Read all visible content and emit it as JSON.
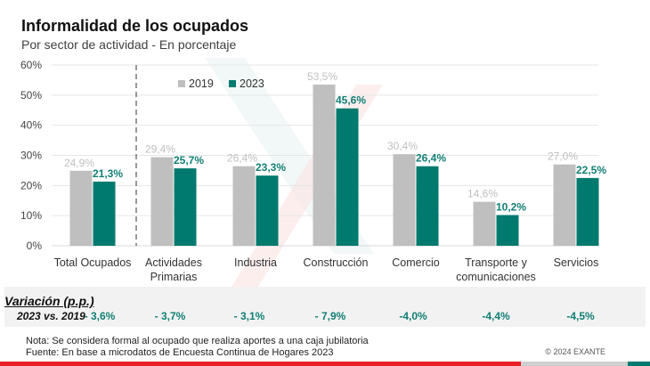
{
  "header": {
    "title": "Informalidad de los ocupados",
    "subtitle": "Por sector de actividad - En porcentaje"
  },
  "chart_data": {
    "type": "bar",
    "title": "Informalidad de los ocupados",
    "subtitle": "Por sector de actividad - En porcentaje",
    "xlabel": "",
    "ylabel": "",
    "ylim": [
      0,
      60
    ],
    "yticks": [
      0,
      10,
      20,
      30,
      40,
      50,
      60
    ],
    "ytick_labels": [
      "0%",
      "10%",
      "20%",
      "30%",
      "40%",
      "50%",
      "60%"
    ],
    "grid": true,
    "legend_position": "top-left",
    "categories": [
      "Total Ocupados",
      "Actividades Primarias",
      "Industria",
      "Construcción",
      "Comercio",
      "Transporte y comunicaciones",
      "Servicios"
    ],
    "category_lines": [
      [
        "Total Ocupados"
      ],
      [
        "Actividades",
        "Primarias"
      ],
      [
        "Industria"
      ],
      [
        "Construcción"
      ],
      [
        "Comercio"
      ],
      [
        "Transporte y",
        "comunicaciones"
      ],
      [
        "Servicios"
      ]
    ],
    "series": [
      {
        "name": "2019",
        "color": "#bfbfbf",
        "label_color": "#bfbfbf",
        "values": [
          24.9,
          29.4,
          26.4,
          53.5,
          30.4,
          14.6,
          27.0
        ],
        "labels": [
          "24,9%",
          "29,4%",
          "26,4%",
          "53,5%",
          "30,4%",
          "14,6%",
          "27,0%"
        ]
      },
      {
        "name": "2023",
        "color": "#007a6e",
        "label_color": "#117f73",
        "values": [
          21.3,
          25.7,
          23.3,
          45.6,
          26.4,
          10.2,
          22.5
        ],
        "labels": [
          "21,3%",
          "25,7%",
          "23,3%",
          "45,6%",
          "26,4%",
          "10,2%",
          "22,5%"
        ]
      }
    ],
    "separator_after_category": 0
  },
  "variation": {
    "title": "Variación (p.p.)",
    "subtitle": "2023 vs. 2019",
    "values": [
      "- 3,6%",
      "- 3,7%",
      "- 3,1%",
      "- 7,9%",
      "-4,0%",
      "-4,4%",
      "-4,5%"
    ]
  },
  "footer": {
    "note": "Nota: Se considera formal al ocupado que realiza aportes a una caja jubilatoria",
    "source": "Fuente: En base a microdatos de Encuesta Continua de Hogares 2023",
    "copyright": "© 2024 EXANTE"
  },
  "colors": {
    "accent_red": "#e8202a",
    "accent_green": "#007a6e",
    "accent_gray": "#d0d0d0"
  }
}
